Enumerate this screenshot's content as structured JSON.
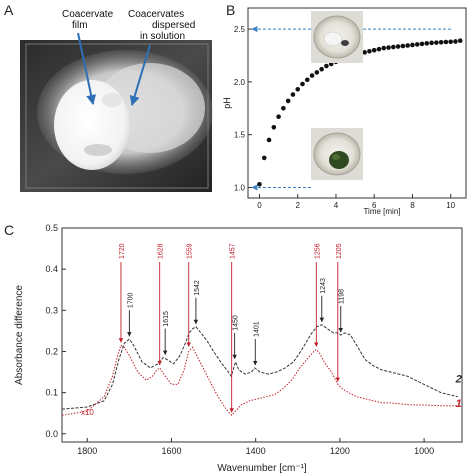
{
  "panels": {
    "a": {
      "letter": "A",
      "label_film": [
        "Coacervate",
        "film"
      ],
      "label_dispersed": [
        "Coacervates",
        "dispersed",
        "in solution"
      ]
    },
    "b": {
      "letter": "B"
    },
    "c": {
      "letter": "C"
    }
  },
  "chart_data": [
    {
      "panel": "B",
      "type": "scatter",
      "xlabel": "Time [min]",
      "ylabel": "pH",
      "xlim": [
        -0.6,
        10.8
      ],
      "ylim": [
        0.9,
        2.7
      ],
      "x_ticks": [
        "0",
        "2",
        "4",
        "6",
        "8",
        "10"
      ],
      "y_ticks": [
        "1.0",
        "1.5",
        "2.0",
        "2.5"
      ],
      "series": [
        {
          "x": [
            0.0,
            0.25,
            0.5,
            0.75,
            1.0,
            1.25,
            1.5,
            1.75,
            2.0,
            2.25,
            2.5,
            2.75,
            3.0,
            3.25,
            3.5,
            3.75,
            4.0,
            4.25,
            4.5,
            4.75,
            5.0,
            5.25,
            5.5,
            5.75,
            6.0,
            6.25,
            6.5,
            6.75,
            7.0,
            7.25,
            7.5,
            7.75,
            8.0,
            8.25,
            8.5,
            8.75,
            9.0,
            9.25,
            9.5,
            9.75,
            10.0,
            10.25,
            10.5
          ],
          "y": [
            1.03,
            1.28,
            1.45,
            1.57,
            1.67,
            1.75,
            1.82,
            1.88,
            1.93,
            1.98,
            2.02,
            2.06,
            2.09,
            2.12,
            2.15,
            2.17,
            2.19,
            2.21,
            2.23,
            2.24,
            2.26,
            2.27,
            2.28,
            2.29,
            2.3,
            2.31,
            2.32,
            2.325,
            2.33,
            2.335,
            2.34,
            2.345,
            2.35,
            2.355,
            2.36,
            2.365,
            2.37,
            2.372,
            2.375,
            2.378,
            2.38,
            2.383,
            2.39
          ]
        }
      ],
      "reference_lines": [
        {
          "y": 2.5
        },
        {
          "y": 1.0
        }
      ],
      "grid": false
    },
    {
      "panel": "C",
      "type": "line",
      "xlabel": "Wavenumber [cm⁻¹]",
      "ylabel": "Absorbance difference",
      "xlim": [
        1860,
        910
      ],
      "ylim": [
        -0.02,
        0.5
      ],
      "x_ticks": [
        "1800",
        "1600",
        "1400",
        "1200",
        "1000"
      ],
      "y_ticks": [
        "0.0",
        "0.1",
        "0.2",
        "0.3",
        "0.4",
        "0.5"
      ],
      "series": [
        {
          "name": "2",
          "color": "#333333",
          "x": [
            1860,
            1800,
            1760,
            1740,
            1725,
            1712,
            1700,
            1690,
            1670,
            1650,
            1632,
            1620,
            1610,
            1595,
            1580,
            1565,
            1558,
            1550,
            1542,
            1530,
            1515,
            1500,
            1480,
            1465,
            1458,
            1452,
            1448,
            1440,
            1425,
            1410,
            1402,
            1390,
            1370,
            1350,
            1330,
            1310,
            1290,
            1270,
            1255,
            1243,
            1230,
            1215,
            1205,
            1198,
            1188,
            1175,
            1160,
            1140,
            1120,
            1100,
            1080,
            1060,
            1040,
            1020,
            1000,
            980,
            960,
            940,
            920
          ],
          "y": [
            0.06,
            0.065,
            0.08,
            0.12,
            0.18,
            0.22,
            0.23,
            0.215,
            0.175,
            0.16,
            0.17,
            0.185,
            0.18,
            0.17,
            0.19,
            0.225,
            0.245,
            0.255,
            0.26,
            0.245,
            0.225,
            0.2,
            0.17,
            0.15,
            0.14,
            0.16,
            0.175,
            0.155,
            0.145,
            0.15,
            0.16,
            0.15,
            0.145,
            0.15,
            0.16,
            0.175,
            0.205,
            0.24,
            0.26,
            0.265,
            0.255,
            0.245,
            0.245,
            0.24,
            0.245,
            0.24,
            0.215,
            0.18,
            0.165,
            0.155,
            0.15,
            0.145,
            0.14,
            0.13,
            0.12,
            0.11,
            0.1,
            0.095,
            0.09
          ]
        },
        {
          "name": "1",
          "color": "#c0202a",
          "x": [
            1860,
            1800,
            1760,
            1740,
            1728,
            1720,
            1712,
            1700,
            1680,
            1660,
            1645,
            1635,
            1628,
            1615,
            1600,
            1585,
            1570,
            1559,
            1550,
            1540,
            1525,
            1510,
            1495,
            1480,
            1470,
            1462,
            1457,
            1448,
            1435,
            1415,
            1395,
            1375,
            1355,
            1335,
            1315,
            1295,
            1275,
            1262,
            1256,
            1248,
            1235,
            1220,
            1210,
            1205,
            1195,
            1180,
            1160,
            1140,
            1120,
            1100,
            1080,
            1060,
            1040,
            1020,
            1000,
            980,
            960,
            940,
            920
          ],
          "y": [
            0.045,
            0.055,
            0.09,
            0.14,
            0.19,
            0.215,
            0.21,
            0.19,
            0.15,
            0.13,
            0.14,
            0.155,
            0.16,
            0.14,
            0.12,
            0.12,
            0.155,
            0.2,
            0.21,
            0.19,
            0.16,
            0.13,
            0.1,
            0.075,
            0.06,
            0.05,
            0.045,
            0.055,
            0.07,
            0.08,
            0.085,
            0.09,
            0.095,
            0.11,
            0.13,
            0.16,
            0.185,
            0.2,
            0.205,
            0.195,
            0.17,
            0.15,
            0.13,
            0.12,
            0.11,
            0.1,
            0.09,
            0.085,
            0.08,
            0.075,
            0.075,
            0.073,
            0.071,
            0.07,
            0.07,
            0.069,
            0.068,
            0.068,
            0.068
          ]
        }
      ],
      "series_labels": [
        {
          "series": "2",
          "text": "2",
          "x": 925,
          "y": 0.125
        },
        {
          "series": "1",
          "text": "1",
          "x": 925,
          "y": 0.065
        }
      ],
      "annotations": {
        "scale_note": {
          "text": "x10",
          "x": 1815,
          "y": 0.046,
          "color": "#c0202a"
        },
        "red_peaks": [
          {
            "label": "1720",
            "x": 1720,
            "y": 0.215
          },
          {
            "label": "1628",
            "x": 1628,
            "y": 0.16
          },
          {
            "label": "1559",
            "x": 1559,
            "y": 0.205
          },
          {
            "label": "1457",
            "x": 1457,
            "y": 0.045
          },
          {
            "label": "1256",
            "x": 1256,
            "y": 0.205
          },
          {
            "label": "1205",
            "x": 1205,
            "y": 0.12
          }
        ],
        "black_peaks": [
          {
            "label": "1700",
            "x": 1700,
            "y": 0.23
          },
          {
            "label": "1615",
            "x": 1615,
            "y": 0.185
          },
          {
            "label": "1542",
            "x": 1542,
            "y": 0.26
          },
          {
            "label": "1450",
            "x": 1450,
            "y": 0.175
          },
          {
            "label": "1401",
            "x": 1401,
            "y": 0.16
          },
          {
            "label": "1243",
            "x": 1243,
            "y": 0.265
          },
          {
            "label": "1198",
            "x": 1198,
            "y": 0.24
          }
        ]
      },
      "grid": false
    }
  ],
  "colors": {
    "reference_arrow": "#3a7fc1",
    "trace_red": "#c0202a",
    "trace_black": "#333333",
    "photo_arrow": "#2e6fb5"
  }
}
